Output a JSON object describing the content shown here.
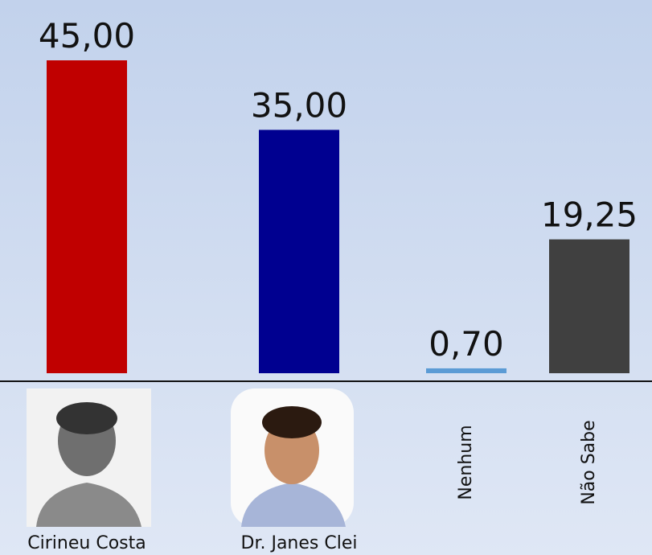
{
  "chart_data": {
    "type": "bar",
    "categories": [
      "Cirineu Costa",
      "Dr. Janes Clei",
      "Nenhum",
      "Não Sabe"
    ],
    "series": [
      {
        "values": [
          45,
          35,
          0.7,
          19.25
        ],
        "value_labels": [
          "45,00",
          "35,00",
          "0,70",
          "19,25"
        ],
        "colors": [
          "#c00000",
          "#000090",
          "#5b9bd5",
          "#404040"
        ]
      }
    ]
  }
}
